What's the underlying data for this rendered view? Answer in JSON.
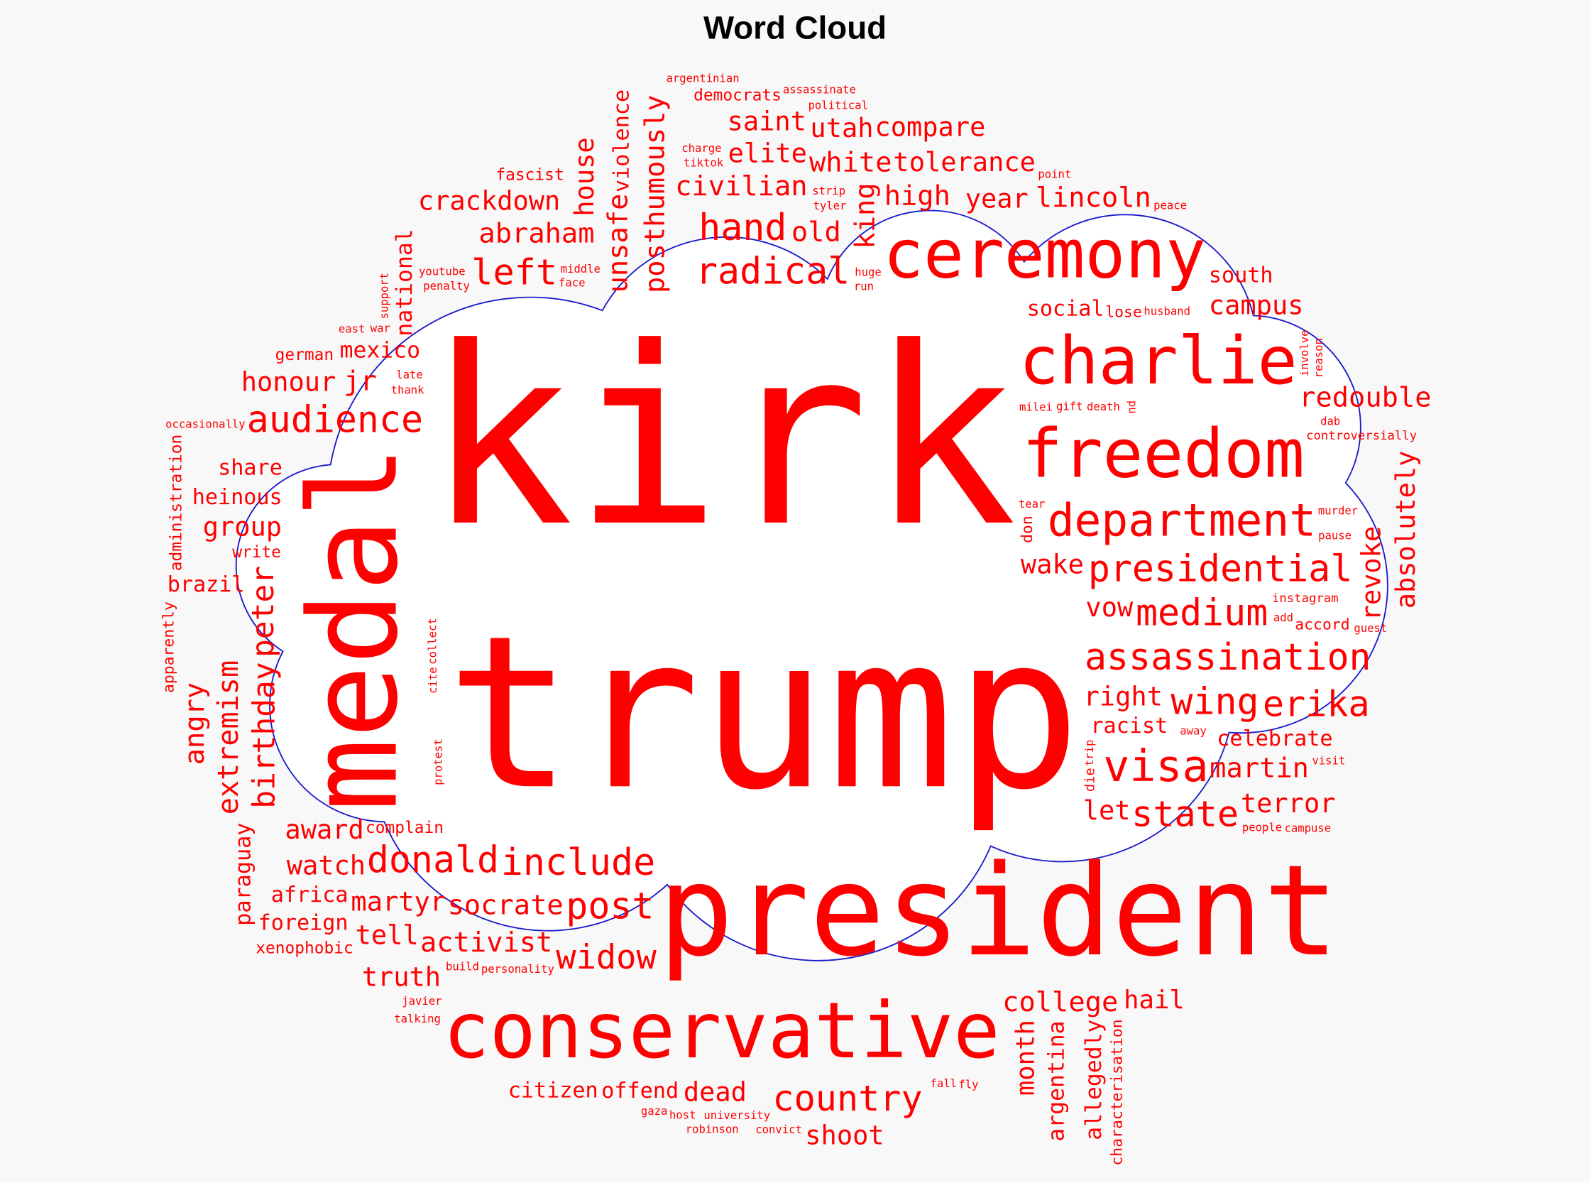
{
  "chart_data": {
    "type": "wordcloud",
    "title": "Word Cloud",
    "word_color": "#ff0000",
    "outline_color": "#1a1acc",
    "mask_fill": "#ffffff",
    "background": "#f8f8f8",
    "shape": "cloud",
    "words": [
      {
        "text": "kirk",
        "weight": 1
      },
      {
        "text": "trump",
        "weight": 0.86
      },
      {
        "text": "president",
        "weight": 0.512
      },
      {
        "text": "medal",
        "weight": 0.496
      },
      {
        "text": "conservative",
        "weight": 0.314
      },
      {
        "text": "ceremony",
        "weight": 0.273
      },
      {
        "text": "charlie",
        "weight": 0.269
      },
      {
        "text": "freedom",
        "weight": 0.273
      },
      {
        "text": "department",
        "weight": 0.182
      },
      {
        "text": "visa",
        "weight": 0.178
      },
      {
        "text": "presidential",
        "weight": 0.149
      },
      {
        "text": "medium",
        "weight": 0.149
      },
      {
        "text": "assassination",
        "weight": 0.149
      },
      {
        "text": "include",
        "weight": 0.149
      },
      {
        "text": "radical",
        "weight": 0.149
      },
      {
        "text": "hand",
        "weight": 0.149
      },
      {
        "text": "audience",
        "weight": 0.149
      },
      {
        "text": "donald",
        "weight": 0.149
      },
      {
        "text": "post",
        "weight": 0.149
      },
      {
        "text": "wing",
        "weight": 0.149
      },
      {
        "text": "erika",
        "weight": 0.145
      },
      {
        "text": "state",
        "weight": 0.145
      },
      {
        "text": "left",
        "weight": 0.145
      },
      {
        "text": "country",
        "weight": 0.145
      },
      {
        "text": "widow",
        "weight": 0.136
      },
      {
        "text": "birthday",
        "weight": 0.124
      },
      {
        "text": "peter",
        "weight": 0.124
      },
      {
        "text": "extremism",
        "weight": 0.116
      },
      {
        "text": "angry",
        "weight": 0.112
      },
      {
        "text": "posthumously",
        "weight": 0.112
      },
      {
        "text": "unsafe",
        "weight": 0.112
      },
      {
        "text": "house",
        "weight": 0.107
      },
      {
        "text": "violence",
        "weight": 0.087
      },
      {
        "text": "king",
        "weight": 0.112
      },
      {
        "text": "revoke",
        "weight": 0.107
      },
      {
        "text": "absolutely",
        "weight": 0.107
      },
      {
        "text": "month",
        "weight": 0.103
      },
      {
        "text": "terror",
        "weight": 0.107
      },
      {
        "text": "celebrate",
        "weight": 0.087
      },
      {
        "text": "martin",
        "weight": 0.112
      },
      {
        "text": "hail",
        "weight": 0.103
      },
      {
        "text": "racist",
        "weight": 0.087
      },
      {
        "text": "accord",
        "weight": 0.062
      },
      {
        "text": "guest",
        "weight": 0.045
      },
      {
        "text": "redouble",
        "weight": 0.112
      },
      {
        "text": "campus",
        "weight": 0.107
      },
      {
        "text": "south",
        "weight": 0.087
      },
      {
        "text": "year",
        "weight": 0.107
      },
      {
        "text": "lincoln",
        "weight": 0.112
      },
      {
        "text": "high",
        "weight": 0.112
      },
      {
        "text": "tolerance",
        "weight": 0.107
      },
      {
        "text": "civilian",
        "weight": 0.112
      },
      {
        "text": "crackdown",
        "weight": 0.107
      },
      {
        "text": "abraham",
        "weight": 0.112
      },
      {
        "text": "elite",
        "weight": 0.107
      },
      {
        "text": "utah",
        "weight": 0.107
      },
      {
        "text": "white",
        "weight": 0.112
      },
      {
        "text": "saint",
        "weight": 0.107
      },
      {
        "text": "social",
        "weight": 0.087
      },
      {
        "text": "right",
        "weight": 0.107
      },
      {
        "text": "lose",
        "weight": 0.062
      },
      {
        "text": "compare",
        "weight": 0.107
      },
      {
        "text": "wake",
        "weight": 0.107
      },
      {
        "text": "vow",
        "weight": 0.107
      },
      {
        "text": "old",
        "weight": 0.112
      },
      {
        "text": "let",
        "weight": 0.107
      },
      {
        "text": "heinous",
        "weight": 0.087
      },
      {
        "text": "mexico",
        "weight": 0.091
      },
      {
        "text": "complain",
        "weight": 0.066
      },
      {
        "text": "martyr",
        "weight": 0.107
      },
      {
        "text": "africa",
        "weight": 0.087
      },
      {
        "text": "write",
        "weight": 0.066
      },
      {
        "text": "foreign",
        "weight": 0.087
      },
      {
        "text": "award",
        "weight": 0.107
      },
      {
        "text": "watch",
        "weight": 0.107
      },
      {
        "text": "tell",
        "weight": 0.107
      },
      {
        "text": "personality",
        "weight": 0.045
      },
      {
        "text": "offend",
        "weight": 0.087
      },
      {
        "text": "socrate",
        "weight": 0.112
      },
      {
        "text": "truth",
        "weight": 0.107
      },
      {
        "text": "javier",
        "weight": 0.045
      },
      {
        "text": "university",
        "weight": 0.045
      },
      {
        "text": "activist",
        "weight": 0.112
      },
      {
        "text": "citizen",
        "weight": 0.087
      },
      {
        "text": "build",
        "weight": 0.045
      },
      {
        "text": "gaza",
        "weight": 0.045
      },
      {
        "text": "dead",
        "weight": 0.107
      },
      {
        "text": "robinson",
        "weight": 0.045
      },
      {
        "text": "host",
        "weight": 0.045
      },
      {
        "text": "shoot",
        "weight": 0.107
      },
      {
        "text": "convict",
        "weight": 0.045
      },
      {
        "text": "college",
        "weight": 0.112
      },
      {
        "text": "fall",
        "weight": 0.045
      },
      {
        "text": "fly",
        "weight": 0.045
      },
      {
        "text": "penalty",
        "weight": 0.045
      },
      {
        "text": "talking",
        "weight": 0.045
      },
      {
        "text": "milei",
        "weight": 0.045
      },
      {
        "text": "tear",
        "weight": 0.045
      },
      {
        "text": "gift",
        "weight": 0.045
      },
      {
        "text": "death",
        "weight": 0.045
      },
      {
        "text": "away",
        "weight": 0.045
      },
      {
        "text": "add",
        "weight": 0.045
      },
      {
        "text": "pause",
        "weight": 0.045
      },
      {
        "text": "people",
        "weight": 0.045
      },
      {
        "text": "visit",
        "weight": 0.045
      },
      {
        "text": "campuse",
        "weight": 0.045
      },
      {
        "text": "run",
        "weight": 0.045
      },
      {
        "text": "political",
        "weight": 0.045
      },
      {
        "text": "instagram",
        "weight": 0.05
      },
      {
        "text": "controversially",
        "weight": 0.05
      },
      {
        "text": "murder",
        "weight": 0.045
      },
      {
        "text": "dab",
        "weight": 0.045
      },
      {
        "text": "husband",
        "weight": 0.045
      },
      {
        "text": "peace",
        "weight": 0.045
      },
      {
        "text": "point",
        "weight": 0.045
      },
      {
        "text": "tyler",
        "weight": 0.045
      },
      {
        "text": "strip",
        "weight": 0.045
      },
      {
        "text": "tiktok",
        "weight": 0.045
      },
      {
        "text": "argentinian",
        "weight": 0.045
      },
      {
        "text": "face",
        "weight": 0.045
      },
      {
        "text": "fascist",
        "weight": 0.066
      },
      {
        "text": "democrats",
        "weight": 0.066
      },
      {
        "text": "assassinate",
        "weight": 0.045
      },
      {
        "text": "youtube",
        "weight": 0.045
      },
      {
        "text": "war",
        "weight": 0.045
      },
      {
        "text": "middle",
        "weight": 0.045
      },
      {
        "text": "charge",
        "weight": 0.045
      },
      {
        "text": "huge",
        "weight": 0.045
      },
      {
        "text": "thank",
        "weight": 0.045
      },
      {
        "text": "late",
        "weight": 0.045
      },
      {
        "text": "east",
        "weight": 0.045
      },
      {
        "text": "german",
        "weight": 0.066
      },
      {
        "text": "jr",
        "weight": 0.112
      },
      {
        "text": "share",
        "weight": 0.087
      },
      {
        "text": "honour",
        "weight": 0.107
      },
      {
        "text": "group",
        "weight": 0.107
      },
      {
        "text": "occasionally",
        "weight": 0.045
      },
      {
        "text": "brazil",
        "weight": 0.087
      },
      {
        "text": "xenophobic",
        "weight": 0.066
      },
      {
        "text": "national",
        "weight": 0.091
      },
      {
        "text": "support",
        "weight": 0.045
      },
      {
        "text": "administration",
        "weight": 0.066
      },
      {
        "text": "apparently",
        "weight": 0.062
      },
      {
        "text": "paraguay",
        "weight": 0.087
      },
      {
        "text": "argentina",
        "weight": 0.091
      },
      {
        "text": "characterisation",
        "weight": 0.062
      },
      {
        "text": "allegedly",
        "weight": 0.091
      },
      {
        "text": "protest",
        "weight": 0.045
      },
      {
        "text": "trip",
        "weight": 0.045
      },
      {
        "text": "don",
        "weight": 0.062
      },
      {
        "text": "nd",
        "weight": 0.045
      },
      {
        "text": "die",
        "weight": 0.054
      },
      {
        "text": "involve",
        "weight": 0.045
      },
      {
        "text": "reason",
        "weight": 0.045
      },
      {
        "text": "collect",
        "weight": 0.045
      },
      {
        "text": "cite",
        "weight": 0.045
      }
    ]
  }
}
